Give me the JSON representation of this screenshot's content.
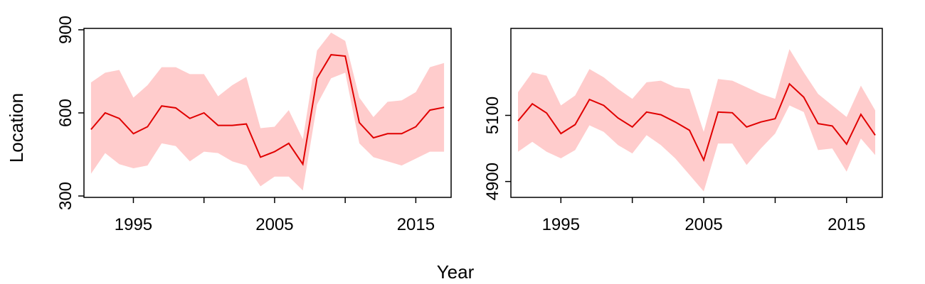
{
  "figure": {
    "ylabel": "Location",
    "xlabel": "Year"
  },
  "colors": {
    "line": "#e00000",
    "band": "#ffcccc",
    "axis": "#000000",
    "background": "#ffffff"
  },
  "chart_data": [
    {
      "type": "line",
      "title": "",
      "xlim": [
        1991.5,
        2017.5
      ],
      "ylim": [
        295,
        905
      ],
      "xticks": [
        1995,
        2000,
        2005,
        2010,
        2015
      ],
      "xtick_labels": [
        "1995",
        "",
        "2005",
        "",
        "2015"
      ],
      "yticks": [
        300,
        600,
        900
      ],
      "ytick_labels": [
        "300",
        "600",
        "900"
      ],
      "grid": false,
      "legend": "none",
      "x": [
        1992,
        1993,
        1994,
        1995,
        1996,
        1997,
        1998,
        1999,
        2000,
        2001,
        2002,
        2003,
        2004,
        2005,
        2006,
        2007,
        2008,
        2009,
        2010,
        2011,
        2012,
        2013,
        2014,
        2015,
        2016,
        2017
      ],
      "series": [
        {
          "values": [
            540,
            600,
            580,
            525,
            550,
            625,
            618,
            580,
            600,
            555,
            555,
            560,
            440,
            460,
            490,
            415,
            725,
            810,
            805,
            565,
            510,
            525,
            525,
            550,
            610,
            620
          ],
          "lower": [
            380,
            455,
            415,
            400,
            410,
            490,
            480,
            425,
            460,
            455,
            425,
            410,
            335,
            370,
            370,
            320,
            630,
            725,
            745,
            490,
            440,
            425,
            410,
            435,
            460,
            460
          ],
          "upper": [
            710,
            745,
            755,
            655,
            700,
            765,
            765,
            740,
            740,
            660,
            700,
            730,
            545,
            550,
            610,
            505,
            825,
            890,
            860,
            655,
            585,
            640,
            645,
            675,
            765,
            780
          ]
        }
      ]
    },
    {
      "type": "line",
      "title": "",
      "xlim": [
        1991.5,
        2017.5
      ],
      "ylim": [
        4852,
        5363
      ],
      "xticks": [
        1995,
        2000,
        2005,
        2010,
        2015
      ],
      "xtick_labels": [
        "1995",
        "",
        "2005",
        "",
        "2015"
      ],
      "yticks": [
        4900,
        5100
      ],
      "ytick_labels": [
        "4900",
        "5100"
      ],
      "grid": false,
      "legend": "none",
      "x": [
        1992,
        1993,
        1994,
        1995,
        1996,
        1997,
        1998,
        1999,
        2000,
        2001,
        2002,
        2003,
        2004,
        2005,
        2006,
        2007,
        2008,
        2009,
        2010,
        2011,
        2012,
        2013,
        2014,
        2015,
        2016,
        2017
      ],
      "series": [
        {
          "values": [
            5083,
            5135,
            5107,
            5045,
            5072,
            5148,
            5130,
            5092,
            5065,
            5110,
            5102,
            5080,
            5055,
            4965,
            5110,
            5108,
            5065,
            5080,
            5090,
            5195,
            5155,
            5075,
            5068,
            5013,
            5103,
            5040
          ],
          "lower": [
            4990,
            5020,
            4990,
            4970,
            4995,
            5070,
            5050,
            5010,
            4985,
            5040,
            5010,
            4970,
            4920,
            4870,
            5015,
            5015,
            4950,
            5000,
            5045,
            5130,
            5110,
            4995,
            5000,
            4930,
            5030,
            4980
          ],
          "upper": [
            5170,
            5230,
            5220,
            5130,
            5160,
            5240,
            5215,
            5180,
            5150,
            5200,
            5205,
            5185,
            5180,
            5050,
            5210,
            5205,
            5185,
            5165,
            5150,
            5300,
            5230,
            5165,
            5130,
            5095,
            5190,
            5115
          ]
        }
      ]
    }
  ]
}
